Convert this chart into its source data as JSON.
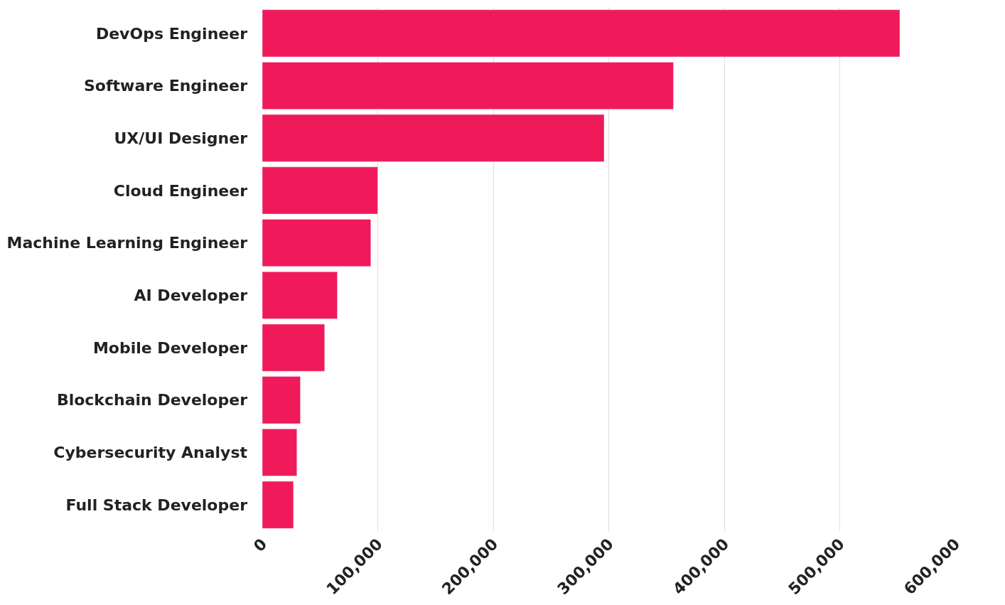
{
  "chart_data": {
    "type": "bar",
    "orientation": "horizontal",
    "categories": [
      "DevOps Engineer",
      "Software Engineer",
      "UX/UI Designer",
      "Cloud Engineer",
      "Machine Learning Engineer",
      "AI Developer",
      "Mobile Developer",
      "Blockchain Developer",
      "Cybersecurity Analyst",
      "Full Stack Developer"
    ],
    "values": [
      552000,
      356000,
      296000,
      100000,
      94000,
      65000,
      54000,
      33000,
      30000,
      27000
    ],
    "color": "#f01a5a",
    "xlim": [
      0,
      600000
    ],
    "xticks": [
      {
        "value": 0,
        "label": "0"
      },
      {
        "value": 100000,
        "label": "100,000"
      },
      {
        "value": 200000,
        "label": "200,000"
      },
      {
        "value": 300000,
        "label": "300,000"
      },
      {
        "value": 400000,
        "label": "400,000"
      },
      {
        "value": 500000,
        "label": "500,000"
      },
      {
        "value": 600000,
        "label": "600,000"
      }
    ],
    "grid": "x"
  }
}
